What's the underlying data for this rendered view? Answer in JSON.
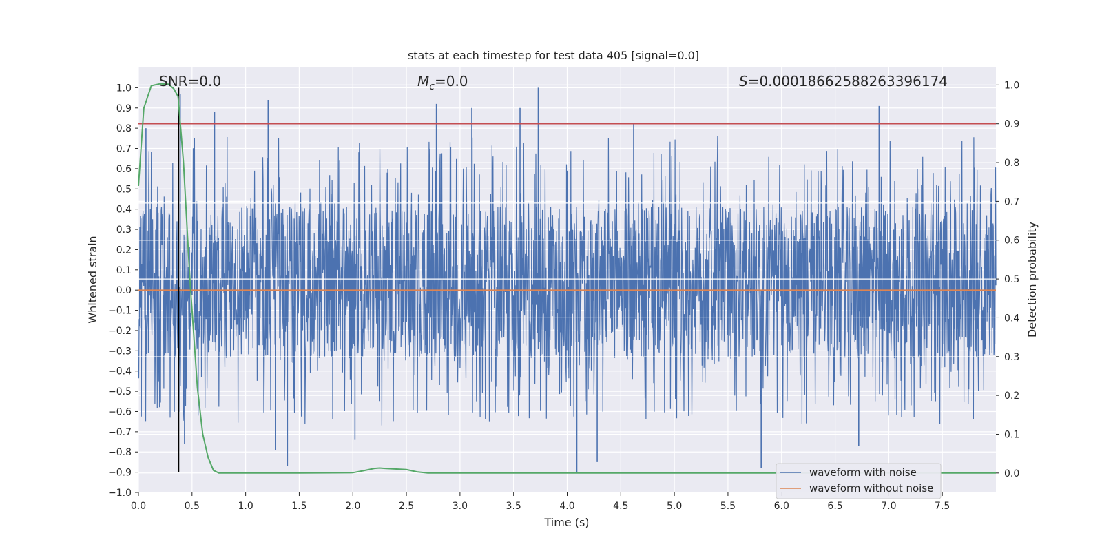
{
  "chart_data": {
    "type": "line",
    "title": "stats at each timestep for test data 405 [signal=0.0]",
    "xlabel": "Time (s)",
    "ylabel": "Whitened strain",
    "y2label": "Detection probability",
    "xlim": [
      0.0,
      8.0
    ],
    "ylim": [
      -1.0,
      1.1
    ],
    "y2lim": [
      -0.05,
      1.045
    ],
    "x_ticks": [
      "0.0",
      "0.5",
      "1.0",
      "1.5",
      "2.0",
      "2.5",
      "3.0",
      "3.5",
      "4.0",
      "4.5",
      "5.0",
      "5.5",
      "6.0",
      "6.5",
      "7.0",
      "7.5"
    ],
    "y_ticks": [
      "1.0",
      "0.9",
      "0.8",
      "0.7",
      "0.6",
      "0.5",
      "0.4",
      "0.3",
      "0.2",
      "0.1",
      "0.0",
      "−0.1",
      "−0.2",
      "−0.3",
      "−0.4",
      "−0.5",
      "−0.6",
      "−0.7",
      "−0.8",
      "−0.9",
      "−1.0"
    ],
    "y2_ticks": [
      "1.0",
      "0.9",
      "0.8",
      "0.7",
      "0.6",
      "0.5",
      "0.4",
      "0.3",
      "0.2",
      "0.1",
      "0.0"
    ],
    "annotations": {
      "snr": "SNR=0.0",
      "mc_symbol": "M",
      "mc_sub": "c",
      "mc_value": "=0.0",
      "s_symbol": "S",
      "s_value": "=0.00018662588263396174"
    },
    "series": [
      {
        "name": "waveform with noise",
        "color": "#4c72b0",
        "kind": "noise",
        "typical_range": [
          -0.32,
          0.41
        ],
        "peaks": [
          {
            "x": 0.07,
            "y": 0.8
          },
          {
            "x": 0.39,
            "y": 0.97
          },
          {
            "x": 0.71,
            "y": 0.88
          },
          {
            "x": 1.21,
            "y": 0.94
          },
          {
            "x": 2.78,
            "y": 0.92
          },
          {
            "x": 3.11,
            "y": 0.9
          },
          {
            "x": 3.73,
            "y": 1.0
          },
          {
            "x": 3.56,
            "y": 0.9
          },
          {
            "x": 4.62,
            "y": 0.82
          },
          {
            "x": 6.91,
            "y": 0.91
          }
        ],
        "troughs": [
          {
            "x": 1.39,
            "y": -0.87
          },
          {
            "x": 4.09,
            "y": -0.9
          },
          {
            "x": 4.28,
            "y": -0.85
          },
          {
            "x": 5.81,
            "y": -0.88
          },
          {
            "x": 6.72,
            "y": -0.77
          },
          {
            "x": 1.28,
            "y": -0.79
          },
          {
            "x": 0.43,
            "y": -0.76
          },
          {
            "x": 2.02,
            "y": -0.74
          }
        ]
      },
      {
        "name": "waveform without noise",
        "color": "#dd8452",
        "x": [
          0.0,
          8.0
        ],
        "values": [
          0.0,
          0.0
        ]
      },
      {
        "name": "detection probability",
        "color": "#55a868",
        "axis": "right",
        "x": [
          0.0,
          0.05,
          0.12,
          0.2,
          0.28,
          0.33,
          0.37,
          0.42,
          0.48,
          0.55,
          0.6,
          0.65,
          0.7,
          0.75,
          0.8,
          1.5,
          2.0,
          2.1,
          2.2,
          2.25,
          2.3,
          2.5,
          2.6,
          2.7,
          8.0
        ],
        "values": [
          0.74,
          0.94,
          0.998,
          1.003,
          1.002,
          0.99,
          0.97,
          0.8,
          0.5,
          0.22,
          0.1,
          0.04,
          0.007,
          0.0,
          0.0,
          0.0,
          0.001,
          0.006,
          0.012,
          0.013,
          0.012,
          0.009,
          0.003,
          0.0,
          0.0
        ]
      }
    ],
    "threshold": {
      "axis": "right",
      "value": 0.9,
      "color": "#c44e52"
    },
    "marker": {
      "x": 0.375,
      "y_from": -0.9,
      "y_to": 1.0,
      "color": "#000000"
    },
    "legend": {
      "location": "lower right",
      "entries": [
        "waveform with noise",
        "waveform without noise"
      ]
    }
  }
}
